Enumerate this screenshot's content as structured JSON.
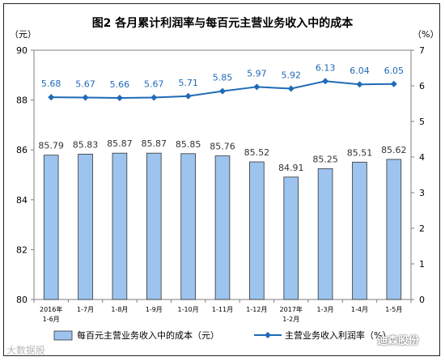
{
  "chart_data": {
    "type": "bar+line",
    "title": "图2  各月累计利润率与每百元主营业务收入中的成本",
    "left_unit": "（元）",
    "right_unit": "（%）",
    "categories": [
      [
        "2016年",
        "1-6月"
      ],
      [
        "1-7月"
      ],
      [
        "1-8月"
      ],
      [
        "1-9月"
      ],
      [
        "1-10月"
      ],
      [
        "1-11月"
      ],
      [
        "1-12月"
      ],
      [
        "2017年",
        "1-2月"
      ],
      [
        "1-3月"
      ],
      [
        "1-4月"
      ],
      [
        "1-5月"
      ]
    ],
    "series": [
      {
        "name": "每百元主营业务收入中的成本（元）",
        "axis": "left",
        "type": "bar",
        "color": "#9cc4ee",
        "values": [
          85.79,
          85.83,
          85.87,
          85.87,
          85.85,
          85.76,
          85.52,
          84.91,
          85.25,
          85.51,
          85.62
        ]
      },
      {
        "name": "主营业务收入利润率（%）",
        "axis": "right",
        "type": "line",
        "color": "#1f6ab8",
        "values": [
          5.68,
          5.67,
          5.66,
          5.67,
          5.71,
          5.85,
          5.97,
          5.92,
          6.13,
          6.04,
          6.05
        ]
      }
    ],
    "left_axis": {
      "min": 80,
      "max": 90,
      "ticks": [
        80,
        82,
        84,
        86,
        88,
        90
      ]
    },
    "right_axis": {
      "min": 0,
      "max": 7,
      "ticks": [
        0,
        1,
        2,
        3,
        4,
        5,
        6,
        7
      ]
    },
    "bar_label_color": "#333333",
    "line_label_color": "#1f6ab8",
    "legend_position": "bottom"
  },
  "watermarks": {
    "left": "大数据股",
    "right": "迪森股份"
  }
}
